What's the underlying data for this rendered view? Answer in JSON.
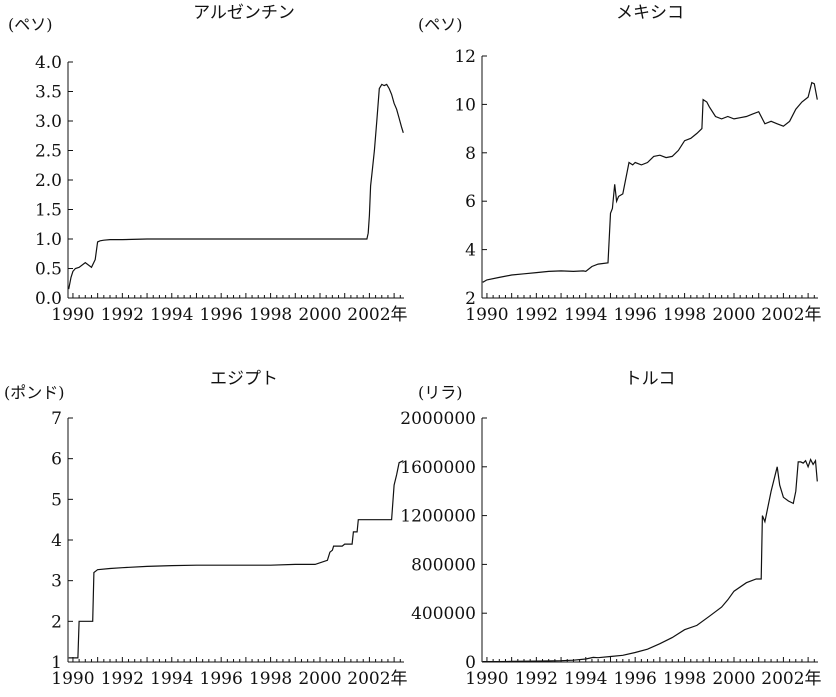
{
  "chart_data": [
    {
      "type": "line",
      "title": "アルゼンチン",
      "unit_label": "(ペソ)",
      "ylim": [
        0,
        4.0
      ],
      "y_ticks": [
        "0.0",
        "0.5",
        "1.0",
        "1.5",
        "2.0",
        "2.5",
        "3.0",
        "3.5",
        "4.0"
      ],
      "y_tick_values": [
        0,
        0.5,
        1.0,
        1.5,
        2.0,
        2.5,
        3.0,
        3.5,
        4.0
      ],
      "xlim": [
        1989.8,
        2003.4
      ],
      "x_ticks": [
        "1990",
        "1992",
        "1994",
        "1996",
        "1998",
        "2000",
        "2002年"
      ],
      "x_tick_values": [
        1990,
        1992,
        1994,
        1996,
        1998,
        2000,
        2002
      ],
      "series": [
        {
          "x": [
            1989.83,
            1989.92,
            1990.0,
            1990.1,
            1990.25,
            1990.5,
            1990.75,
            1990.9,
            1991.0,
            1991.1,
            1991.25,
            1991.5,
            1992.0,
            1993.0,
            1995.0,
            1998.0,
            2001.0,
            2001.9,
            2001.95,
            2002.0,
            2002.05,
            2002.1,
            2002.2,
            2002.3,
            2002.4,
            2002.5,
            2002.6,
            2002.7,
            2002.8,
            2002.9,
            2003.0,
            2003.1,
            2003.2,
            2003.3,
            2003.37
          ],
          "y": [
            0.15,
            0.35,
            0.45,
            0.5,
            0.52,
            0.6,
            0.52,
            0.65,
            0.95,
            0.97,
            0.98,
            0.99,
            0.99,
            1.0,
            1.0,
            1.0,
            1.0,
            1.0,
            1.1,
            1.4,
            1.9,
            2.1,
            2.5,
            3.0,
            3.55,
            3.62,
            3.6,
            3.62,
            3.55,
            3.45,
            3.3,
            3.2,
            3.05,
            2.9,
            2.8
          ]
        }
      ]
    },
    {
      "type": "line",
      "title": "メキシコ",
      "unit_label": "(ペソ)",
      "ylim": [
        2,
        12
      ],
      "y_ticks": [
        "2",
        "4",
        "6",
        "8",
        "10",
        "12"
      ],
      "y_tick_values": [
        2,
        4,
        6,
        8,
        10,
        12
      ],
      "xlim": [
        1989.8,
        2003.4
      ],
      "x_ticks": [
        "1990",
        "1992",
        "1994",
        "1996",
        "1998",
        "2000",
        "2002年"
      ],
      "x_tick_values": [
        1990,
        1992,
        1994,
        1996,
        1998,
        2000,
        2002
      ],
      "series": [
        {
          "x": [
            1989.83,
            1990.0,
            1990.5,
            1991.0,
            1991.5,
            1992.0,
            1992.5,
            1993.0,
            1993.5,
            1993.9,
            1994.0,
            1994.25,
            1994.5,
            1994.9,
            1995.0,
            1995.08,
            1995.17,
            1995.25,
            1995.33,
            1995.5,
            1995.75,
            1995.9,
            1996.0,
            1996.25,
            1996.5,
            1996.75,
            1997.0,
            1997.25,
            1997.5,
            1997.75,
            1998.0,
            1998.25,
            1998.5,
            1998.7,
            1998.75,
            1998.9,
            1999.0,
            1999.25,
            1999.5,
            1999.75,
            2000.0,
            2000.25,
            2000.5,
            2000.75,
            2001.0,
            2001.25,
            2001.5,
            2001.75,
            2002.0,
            2002.25,
            2002.5,
            2002.75,
            2003.0,
            2003.15,
            2003.25,
            2003.37
          ],
          "y": [
            2.65,
            2.75,
            2.85,
            2.95,
            3.0,
            3.05,
            3.1,
            3.12,
            3.1,
            3.12,
            3.1,
            3.3,
            3.4,
            3.45,
            5.5,
            5.7,
            6.7,
            6.0,
            6.2,
            6.3,
            7.6,
            7.5,
            7.6,
            7.5,
            7.6,
            7.85,
            7.9,
            7.8,
            7.85,
            8.1,
            8.5,
            8.6,
            8.8,
            9.0,
            10.2,
            10.1,
            9.9,
            9.5,
            9.4,
            9.5,
            9.4,
            9.45,
            9.5,
            9.6,
            9.7,
            9.2,
            9.3,
            9.2,
            9.1,
            9.3,
            9.8,
            10.1,
            10.3,
            10.9,
            10.85,
            10.2
          ]
        }
      ]
    },
    {
      "type": "line",
      "title": "エジプト",
      "unit_label": "(ポンド)",
      "ylim": [
        1,
        7
      ],
      "y_ticks": [
        "1",
        "2",
        "3",
        "4",
        "5",
        "6",
        "7"
      ],
      "y_tick_values": [
        1,
        2,
        3,
        4,
        5,
        6,
        7
      ],
      "xlim": [
        1989.8,
        2003.4
      ],
      "x_ticks": [
        "1990",
        "1992",
        "1994",
        "1996",
        "1998",
        "2000",
        "2002年"
      ],
      "x_tick_values": [
        1990,
        1992,
        1994,
        1996,
        1998,
        2000,
        2002
      ],
      "series": [
        {
          "x": [
            1989.83,
            1990.2,
            1990.25,
            1990.8,
            1990.85,
            1991.0,
            1991.5,
            1992.0,
            1993.0,
            1994.0,
            1995.0,
            1996.0,
            1997.0,
            1998.0,
            1999.0,
            1999.8,
            2000.3,
            2000.4,
            2000.5,
            2000.55,
            2000.9,
            2001.0,
            2001.3,
            2001.35,
            2001.5,
            2001.55,
            2002.2,
            2002.3,
            2002.9,
            2003.0,
            2003.1,
            2003.2,
            2003.37
          ],
          "y": [
            1.1,
            1.1,
            2.0,
            2.0,
            3.2,
            3.27,
            3.3,
            3.32,
            3.35,
            3.37,
            3.38,
            3.38,
            3.38,
            3.38,
            3.4,
            3.4,
            3.5,
            3.7,
            3.75,
            3.85,
            3.85,
            3.9,
            3.9,
            4.2,
            4.2,
            4.5,
            4.5,
            4.5,
            4.5,
            5.35,
            5.6,
            5.9,
            5.95
          ]
        }
      ]
    },
    {
      "type": "line",
      "title": "トルコ",
      "unit_label": "(リラ)",
      "ylim": [
        0,
        2000000
      ],
      "y_ticks": [
        "0",
        "400000",
        "800000",
        "1200000",
        "1600000",
        "2000000"
      ],
      "y_tick_values": [
        0,
        400000,
        800000,
        1200000,
        1600000,
        2000000
      ],
      "xlim": [
        1989.8,
        2003.4
      ],
      "x_ticks": [
        "1990",
        "1992",
        "1994",
        "1996",
        "1998",
        "2000",
        "2002年"
      ],
      "x_tick_values": [
        1990,
        1992,
        1994,
        1996,
        1998,
        2000,
        2002
      ],
      "series": [
        {
          "x": [
            1989.83,
            1990.5,
            1991.0,
            1992.0,
            1993.0,
            1993.5,
            1994.0,
            1994.3,
            1994.5,
            1995.0,
            1995.5,
            1996.0,
            1996.5,
            1997.0,
            1997.5,
            1998.0,
            1998.5,
            1999.0,
            1999.5,
            1999.75,
            2000.0,
            2000.5,
            2000.9,
            2001.1,
            2001.15,
            2001.25,
            2001.5,
            2001.75,
            2001.85,
            2002.0,
            2002.2,
            2002.4,
            2002.5,
            2002.6,
            2002.7,
            2002.8,
            2002.9,
            2003.0,
            2003.1,
            2003.2,
            2003.3,
            2003.37
          ],
          "y": [
            3000,
            3500,
            5000,
            7000,
            11000,
            15000,
            25000,
            38000,
            35000,
            45000,
            55000,
            78000,
            105000,
            150000,
            200000,
            265000,
            300000,
            375000,
            450000,
            510000,
            580000,
            650000,
            680000,
            680000,
            1200000,
            1150000,
            1400000,
            1600000,
            1450000,
            1350000,
            1320000,
            1300000,
            1400000,
            1640000,
            1640000,
            1630000,
            1650000,
            1600000,
            1660000,
            1620000,
            1650000,
            1480000
          ]
        }
      ]
    }
  ]
}
